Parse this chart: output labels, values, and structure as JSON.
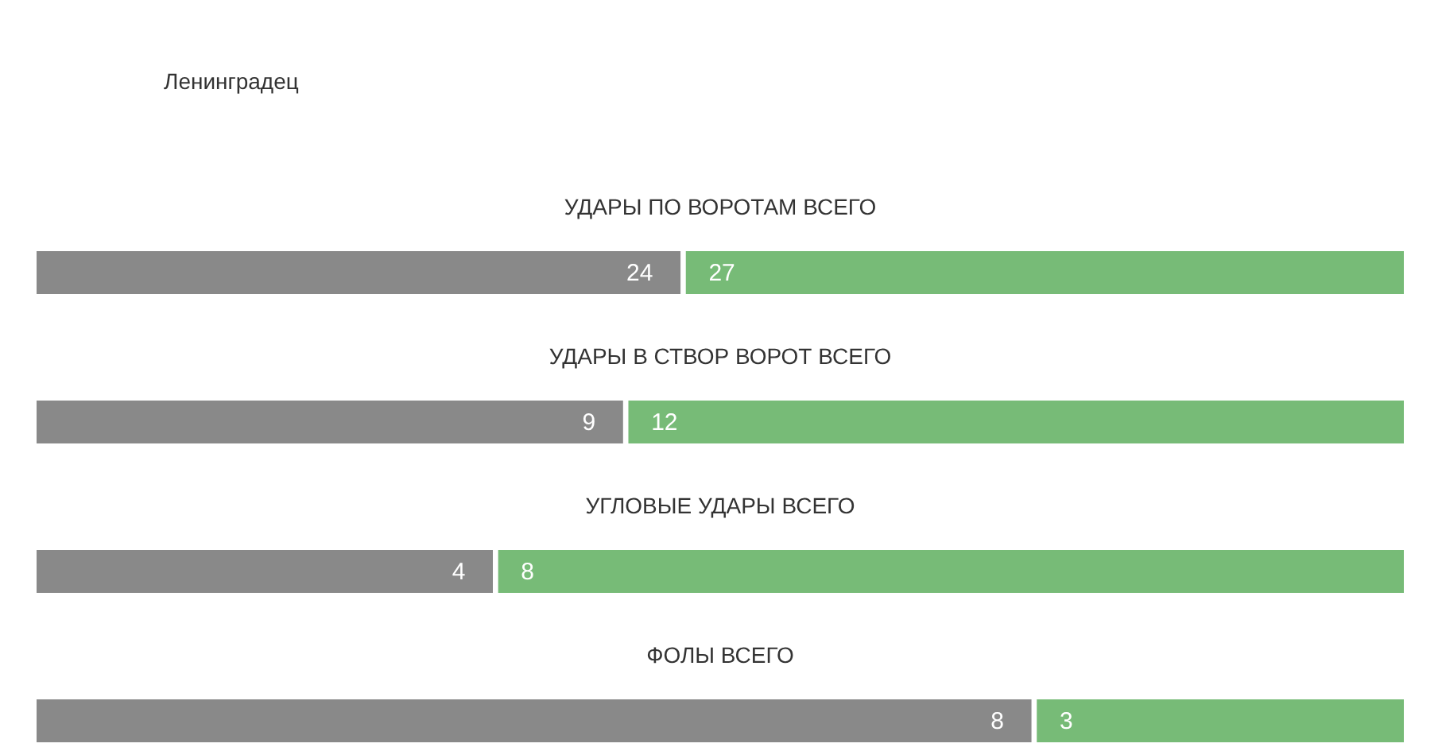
{
  "chart_data": [
    {
      "type": "bar",
      "orientation": "horizontal",
      "stacked": true,
      "categories": [
        "УДАРЫ ПО ВОРОТАМ ВСЕГО"
      ],
      "series": [
        {
          "name": "Ленинградец",
          "color": "#898989",
          "values": [
            24
          ]
        },
        {
          "color": "#77bb77",
          "values": [
            27
          ]
        }
      ],
      "xlim": [
        0,
        51
      ],
      "data_labels": true,
      "legend": "top left",
      "tick_labels": "y"
    },
    {
      "type": "bar",
      "orientation": "horizontal",
      "stacked": true,
      "categories": [
        "УДАРЫ В СТВОР ВОРОТ ВСЕГО"
      ],
      "series": [
        {
          "color": "#898989",
          "values": [
            9
          ]
        },
        {
          "color": "#77bb77",
          "values": [
            12
          ]
        }
      ],
      "xlim": [
        0,
        21
      ],
      "data_labels": true,
      "tick_labels": "y"
    },
    {
      "type": "bar",
      "orientation": "horizontal",
      "stacked": true,
      "categories": [
        "УГЛОВЫЕ УДАРЫ ВСЕГО"
      ],
      "series": [
        {
          "color": "#898989",
          "values": [
            4
          ]
        },
        {
          "color": "#77bb77",
          "values": [
            8
          ]
        }
      ],
      "xlim": [
        0,
        12
      ],
      "data_labels": true,
      "tick_labels": "y"
    },
    {
      "type": "bar",
      "orientation": "horizontal",
      "stacked": true,
      "categories": [
        "ФОЛЫ ВСЕГО"
      ],
      "series": [
        {
          "color": "#898989",
          "values": [
            8
          ]
        },
        {
          "color": "#77bb77",
          "values": [
            3
          ]
        }
      ],
      "xlim": [
        0,
        11
      ],
      "data_labels": true,
      "tick_labels": "y"
    }
  ]
}
